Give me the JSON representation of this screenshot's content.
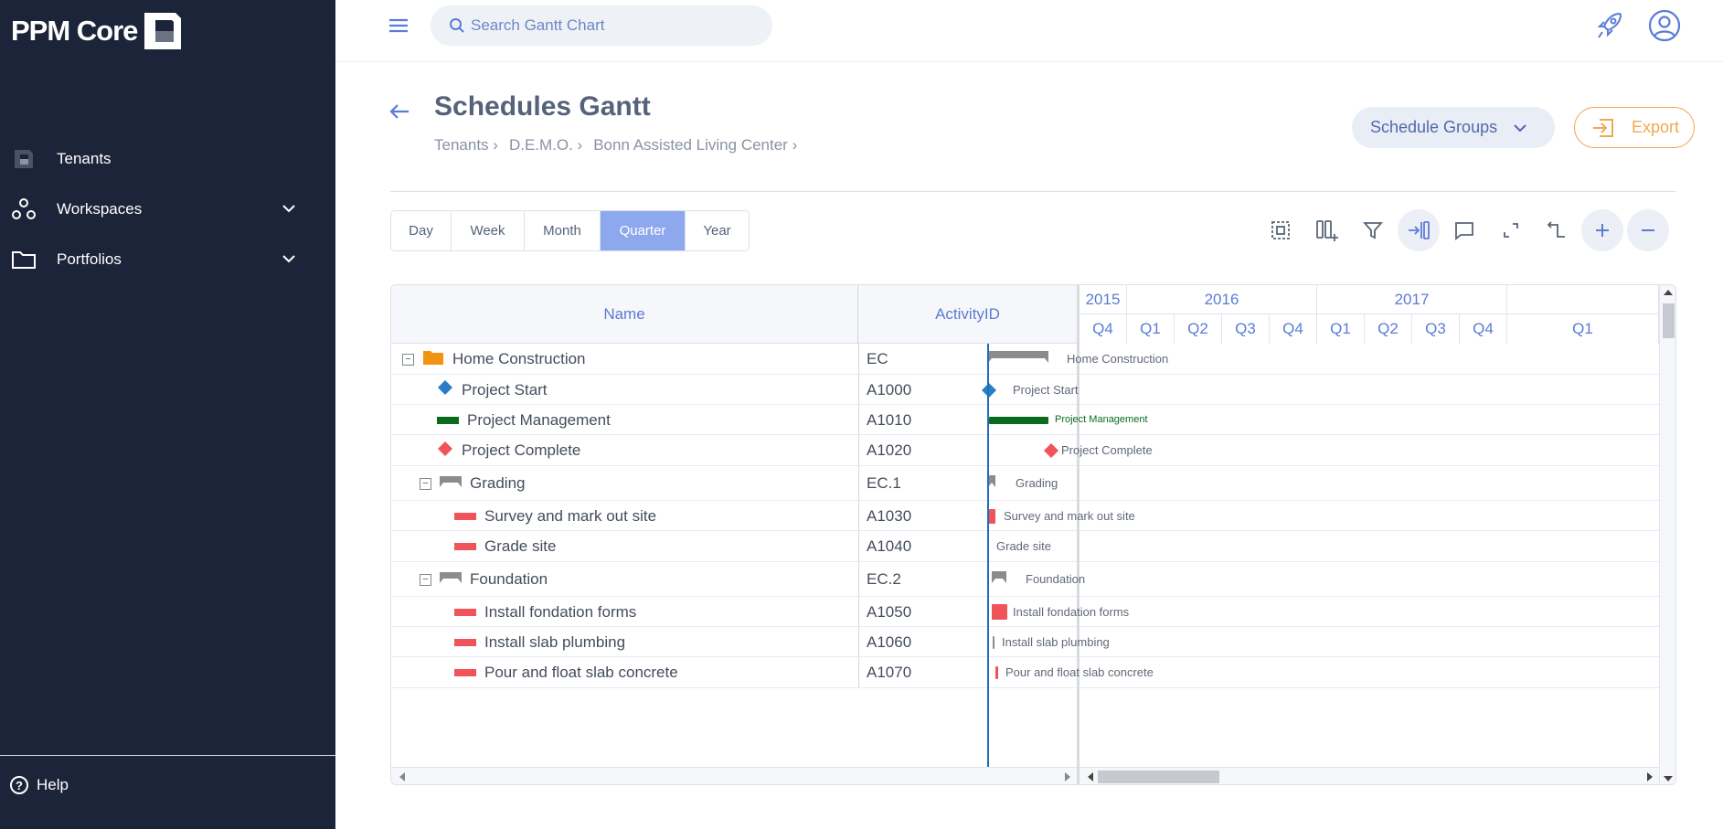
{
  "app": {
    "logo_text": "PPM Core"
  },
  "sidebar": {
    "items": [
      {
        "label": "Tenants",
        "icon": "tenant-icon",
        "expandable": false
      },
      {
        "label": "Workspaces",
        "icon": "workspaces-icon",
        "expandable": true
      },
      {
        "label": "Portfolios",
        "icon": "folder-icon",
        "expandable": true
      }
    ],
    "help_label": "Help"
  },
  "topbar": {
    "search_placeholder": "Search Gantt Chart"
  },
  "page": {
    "title": "Schedules Gantt",
    "breadcrumbs": [
      "Tenants ›",
      "D.E.M.O. ›",
      "Bonn Assisted Living Center ›"
    ],
    "schedule_groups_label": "Schedule Groups",
    "export_label": "Export"
  },
  "view_tabs": [
    {
      "label": "Day",
      "active": false
    },
    {
      "label": "Week",
      "active": false
    },
    {
      "label": "Month",
      "active": false
    },
    {
      "label": "Quarter",
      "active": true
    },
    {
      "label": "Year",
      "active": false
    }
  ],
  "toolbar": [
    "select-all-icon",
    "add-column-icon",
    "filter-icon",
    "fit-to-screen-icon",
    "comment-icon",
    "fullscreen-icon",
    "critical-path-icon",
    "zoom-in-icon",
    "zoom-out-icon"
  ],
  "grid": {
    "columns": [
      "Name",
      "ActivityID"
    ],
    "rows": [
      {
        "name": "Home Construction",
        "id": "EC",
        "level": 0,
        "type": "project",
        "toggle": "−"
      },
      {
        "name": "Project Start",
        "id": "A1000",
        "level": 1,
        "type": "milestone-start"
      },
      {
        "name": "Project Management",
        "id": "A1010",
        "level": 1,
        "type": "task-green"
      },
      {
        "name": "Project Complete",
        "id": "A1020",
        "level": 1,
        "type": "milestone-end"
      },
      {
        "name": "Grading",
        "id": "EC.1",
        "level": 1,
        "type": "summary",
        "toggle": "−"
      },
      {
        "name": "Survey and mark out site",
        "id": "A1030",
        "level": 2,
        "type": "task-red"
      },
      {
        "name": "Grade site",
        "id": "A1040",
        "level": 2,
        "type": "task-red"
      },
      {
        "name": "Foundation",
        "id": "EC.2",
        "level": 1,
        "type": "summary",
        "toggle": "−"
      },
      {
        "name": "Install fondation forms",
        "id": "A1050",
        "level": 2,
        "type": "task-red"
      },
      {
        "name": "Install slab plumbing",
        "id": "A1060",
        "level": 2,
        "type": "task-red"
      },
      {
        "name": "Pour and float slab concrete",
        "id": "A1070",
        "level": 2,
        "type": "task-red"
      }
    ]
  },
  "timeline": {
    "years": [
      "2015",
      "2016",
      "2017"
    ],
    "quarters": [
      "Q4",
      "Q1",
      "Q2",
      "Q3",
      "Q4",
      "Q1",
      "Q2",
      "Q3",
      "Q4",
      "Q1"
    ]
  },
  "colors": {
    "sidebar_bg": "#1b2438",
    "accent_blue": "#5b7bd6",
    "tab_active": "#8ea8ee",
    "export_orange": "#f0a94e",
    "task_red": "#f0545a",
    "task_green": "#0a6b1c",
    "summary_gray": "#8a8c8e",
    "milestone_blue": "#2a7fc4",
    "today_line": "#1e6fb8",
    "folder_orange": "#f39410"
  }
}
